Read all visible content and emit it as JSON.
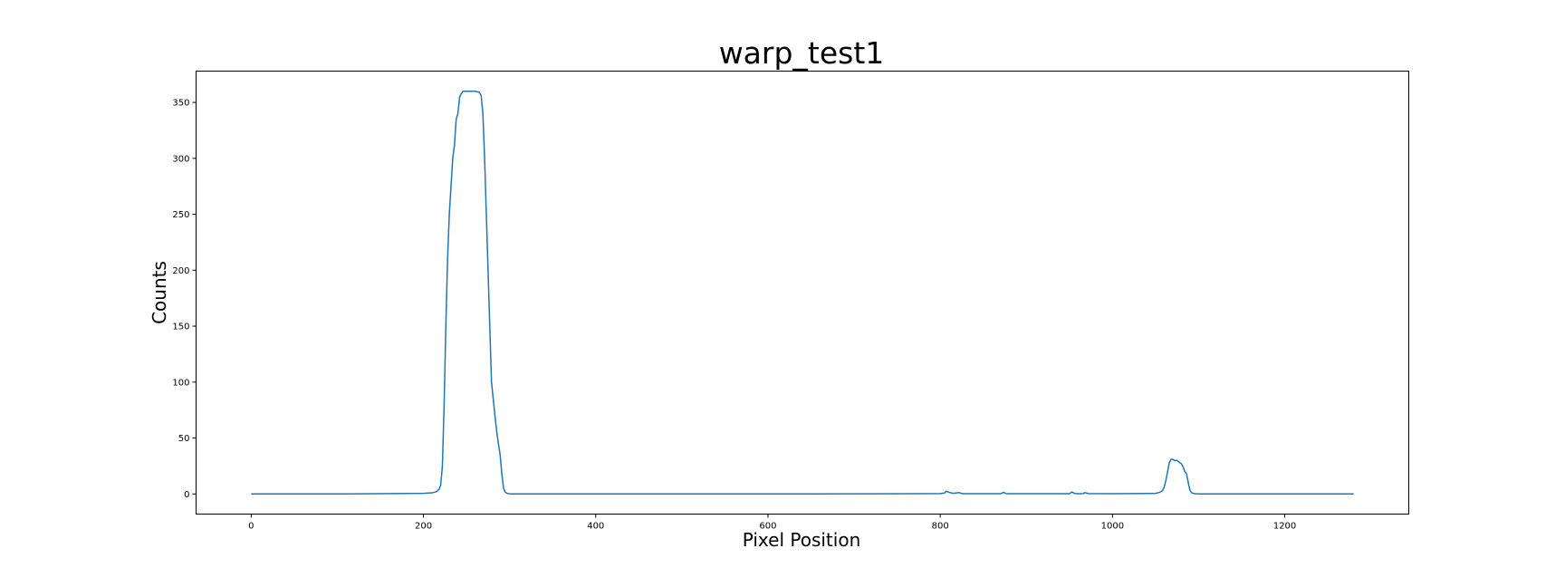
{
  "chart_data": {
    "type": "line",
    "title": "warp_test1",
    "xlabel": "Pixel Position",
    "ylabel": "Counts",
    "xlim": [
      -64,
      1344
    ],
    "ylim": [
      -18,
      378
    ],
    "xticks": [
      0,
      200,
      400,
      600,
      800,
      1000,
      1200
    ],
    "yticks": [
      0,
      50,
      100,
      150,
      200,
      250,
      300,
      350
    ],
    "grid": false,
    "legend": "none",
    "series": [
      {
        "color": "#1f77b4",
        "x": [
          0,
          100,
          200,
          210,
          215,
          218,
          220,
          222,
          224,
          226,
          228,
          230,
          232,
          234,
          236,
          238,
          240,
          242,
          244,
          246,
          248,
          250,
          255,
          260,
          265,
          267,
          269,
          271,
          273,
          275,
          277,
          279,
          281,
          283,
          285,
          287,
          289,
          291,
          293,
          295,
          297,
          299,
          302,
          310,
          400,
          600,
          800,
          805,
          807,
          810,
          815,
          822,
          825,
          828,
          870,
          874,
          876,
          880,
          950,
          953,
          956,
          960,
          966,
          968,
          972,
          1000,
          1050,
          1055,
          1058,
          1060,
          1062,
          1064,
          1066,
          1068,
          1070,
          1072,
          1075,
          1078,
          1080,
          1082,
          1084,
          1086,
          1088,
          1090,
          1092,
          1094,
          1096,
          1100,
          1200,
          1280
        ],
        "y": [
          0,
          0,
          0.5,
          1,
          2,
          4,
          8,
          25,
          80,
          150,
          210,
          250,
          275,
          300,
          312,
          335,
          340,
          355,
          358,
          360,
          360,
          360,
          360,
          360,
          359,
          356,
          340,
          300,
          250,
          200,
          150,
          100,
          85,
          70,
          56,
          45,
          35,
          18,
          5,
          1.5,
          0.5,
          0.2,
          0,
          0,
          0,
          0,
          0.3,
          0.8,
          2.5,
          1.5,
          0.5,
          1.2,
          0.4,
          0.2,
          0.2,
          1.5,
          0.3,
          0.2,
          0.2,
          1.8,
          0.4,
          0.2,
          0.3,
          1.2,
          0.3,
          0.2,
          0.5,
          1.5,
          3,
          6,
          12,
          20,
          28,
          31,
          31,
          30,
          30,
          28,
          27,
          24,
          20,
          18,
          10,
          3,
          1,
          0.5,
          0.2,
          0,
          0,
          0
        ]
      }
    ]
  }
}
